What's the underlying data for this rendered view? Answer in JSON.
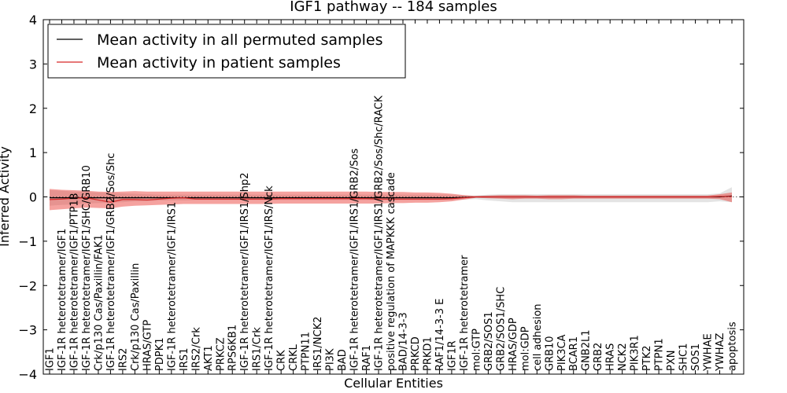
{
  "chart_data": {
    "type": "line",
    "title": "IGF1 pathway -- 184 samples",
    "xlabel": "Cellular Entities",
    "ylabel": "Inferred Activity",
    "ylim": [
      -4,
      4
    ],
    "yticks": [
      -4,
      -3,
      -2,
      -1,
      0,
      1,
      2,
      3,
      4
    ],
    "ytick_labels": [
      "−4",
      "−3",
      "−2",
      "−1",
      "0",
      "1",
      "2",
      "3",
      "4"
    ],
    "legend_position": "top-left",
    "categories": [
      "IGF1",
      "IGF-1R heterotetramer/IGF1",
      "IGF-1R heterotetramer/IGF1/PTP1B",
      "IGF-1R heterotetramer/IGF1/SHC/GRB10",
      "Crk/p130 Cas/Paxillin/FAK1",
      "IGF-1R heterotetramer/IGF1/GRB2/Sos/Shc",
      "IRS2",
      "Crk/p130 Cas/Paxillin",
      "HRAS/GTP",
      "PDPK1",
      "IGF-1R heterotetramer/IGF1/IRS1",
      "IRS1",
      "IRS2/Crk",
      "AKT1",
      "PRKCZ",
      "RPS6KB1",
      "IGF-1R heterotetramer/IGF1/IRS1/Shp2",
      "IRS1/Crk",
      "IGF-1R heterotetramer/IGF1/IRS/Nck",
      "CRK",
      "CRKL",
      "PTPN11",
      "IRS1/NCK2",
      "PI3K",
      "BAD",
      "IGF-1R heterotetramer/IGF1/IRS1/GRB2/Sos",
      "RAF1",
      "IGF-1R heterotetramer/IGF1/IRS1/GRB2/Sos/Shc/RACK",
      "positive regulation of MAPKKK cascade",
      "BAD/14-3-3",
      "PRKCD",
      "PRKD1",
      "RAF1/14-3-3 E",
      "IGF1R",
      "IGF-1R heterotetramer",
      "mol:GTP",
      "GRB2/SOS1",
      "GRB2/SOS1/SHC",
      "HRAS/GDP",
      "mol:GDP",
      "cell adhesion",
      "GRB10",
      "PIK3CA",
      "BCAR1",
      "GNB2L1",
      "GRB2",
      "HRAS",
      "NCK2",
      "PIK3R1",
      "PTK2",
      "PTPN1",
      "PXN",
      "SHC1",
      "SOS1",
      "YWHAE",
      "YWHAZ",
      "apoptosis"
    ],
    "series": [
      {
        "name": "Mean activity in all permuted samples",
        "color": "#000000",
        "values": [
          -0.02,
          -0.02,
          -0.02,
          -0.02,
          -0.02,
          -0.02,
          -0.02,
          -0.02,
          -0.02,
          -0.02,
          -0.02,
          -0.02,
          -0.02,
          -0.02,
          -0.02,
          -0.02,
          -0.02,
          -0.02,
          -0.02,
          -0.02,
          -0.02,
          -0.02,
          -0.02,
          -0.02,
          -0.02,
          -0.02,
          -0.02,
          -0.02,
          -0.02,
          -0.02,
          -0.02,
          -0.02,
          -0.02,
          -0.02,
          -0.01,
          0.0,
          0.0,
          0.0,
          0.0,
          0.0,
          0.0,
          0.0,
          0.0,
          0.0,
          0.0,
          0.0,
          0.0,
          0.0,
          0.0,
          0.0,
          0.0,
          0.0,
          0.0,
          0.0,
          0.0,
          0.0,
          0.02
        ],
        "band_lower": [
          -0.2,
          -0.18,
          -0.17,
          -0.15,
          -0.14,
          -0.13,
          -0.12,
          -0.1,
          -0.1,
          -0.08,
          -0.08,
          -0.08,
          -0.07,
          -0.07,
          -0.07,
          -0.07,
          -0.07,
          -0.07,
          -0.07,
          -0.07,
          -0.07,
          -0.07,
          -0.07,
          -0.07,
          -0.07,
          -0.07,
          -0.07,
          -0.07,
          -0.07,
          -0.07,
          -0.07,
          -0.07,
          -0.07,
          -0.07,
          -0.06,
          -0.05,
          -0.08,
          -0.1,
          -0.12,
          -0.12,
          -0.12,
          -0.12,
          -0.12,
          -0.12,
          -0.12,
          -0.12,
          -0.12,
          -0.12,
          -0.12,
          -0.12,
          -0.12,
          -0.12,
          -0.12,
          -0.12,
          -0.12,
          -0.1,
          -0.12
        ],
        "band_upper": [
          0.15,
          0.14,
          0.12,
          0.11,
          0.1,
          0.09,
          0.08,
          0.07,
          0.06,
          0.05,
          0.05,
          0.05,
          0.05,
          0.05,
          0.05,
          0.05,
          0.05,
          0.05,
          0.05,
          0.05,
          0.05,
          0.05,
          0.05,
          0.05,
          0.05,
          0.05,
          0.05,
          0.05,
          0.05,
          0.05,
          0.05,
          0.05,
          0.05,
          0.05,
          0.04,
          0.03,
          0.05,
          0.06,
          0.06,
          0.06,
          0.06,
          0.06,
          0.06,
          0.06,
          0.06,
          0.06,
          0.06,
          0.06,
          0.06,
          0.06,
          0.06,
          0.06,
          0.06,
          0.06,
          0.06,
          0.08,
          0.22
        ]
      },
      {
        "name": "Mean activity in patient samples",
        "color": "#d62728",
        "values": [
          -0.06,
          -0.05,
          -0.03,
          -0.02,
          -0.07,
          -0.12,
          -0.06,
          -0.06,
          -0.07,
          -0.05,
          -0.03,
          -0.02,
          -0.05,
          -0.05,
          -0.05,
          -0.05,
          -0.05,
          -0.05,
          -0.05,
          -0.04,
          -0.04,
          -0.04,
          -0.04,
          -0.04,
          -0.04,
          -0.04,
          -0.04,
          -0.05,
          -0.05,
          -0.05,
          -0.05,
          -0.05,
          -0.05,
          -0.04,
          -0.02,
          0.0,
          0.0,
          0.0,
          0.0,
          0.0,
          0.0,
          0.0,
          0.0,
          0.0,
          0.0,
          0.0,
          0.0,
          0.0,
          0.0,
          0.0,
          0.0,
          0.0,
          0.0,
          0.0,
          0.0,
          0.01,
          0.01
        ],
        "band_lower": [
          -0.3,
          -0.28,
          -0.26,
          -0.24,
          -0.25,
          -0.26,
          -0.22,
          -0.2,
          -0.19,
          -0.18,
          -0.17,
          -0.16,
          -0.16,
          -0.16,
          -0.16,
          -0.16,
          -0.16,
          -0.16,
          -0.16,
          -0.15,
          -0.15,
          -0.15,
          -0.15,
          -0.15,
          -0.15,
          -0.15,
          -0.15,
          -0.15,
          -0.14,
          -0.14,
          -0.13,
          -0.13,
          -0.12,
          -0.1,
          -0.06,
          -0.02,
          -0.03,
          -0.04,
          -0.05,
          -0.04,
          -0.04,
          -0.05,
          -0.05,
          -0.04,
          -0.04,
          -0.04,
          -0.04,
          -0.04,
          -0.04,
          -0.04,
          -0.04,
          -0.04,
          -0.04,
          -0.04,
          -0.04,
          -0.05,
          -0.12
        ],
        "band_upper": [
          0.18,
          0.16,
          0.15,
          0.14,
          0.12,
          0.11,
          0.12,
          0.13,
          0.12,
          0.12,
          0.12,
          0.12,
          0.12,
          0.12,
          0.12,
          0.12,
          0.12,
          0.12,
          0.12,
          0.12,
          0.12,
          0.12,
          0.12,
          0.12,
          0.12,
          0.12,
          0.12,
          0.11,
          0.11,
          0.11,
          0.1,
          0.1,
          0.09,
          0.07,
          0.04,
          0.02,
          0.03,
          0.04,
          0.04,
          0.04,
          0.03,
          0.04,
          0.04,
          0.04,
          0.03,
          0.03,
          0.03,
          0.03,
          0.03,
          0.03,
          0.03,
          0.03,
          0.03,
          0.03,
          0.03,
          0.06,
          0.1
        ]
      }
    ]
  }
}
